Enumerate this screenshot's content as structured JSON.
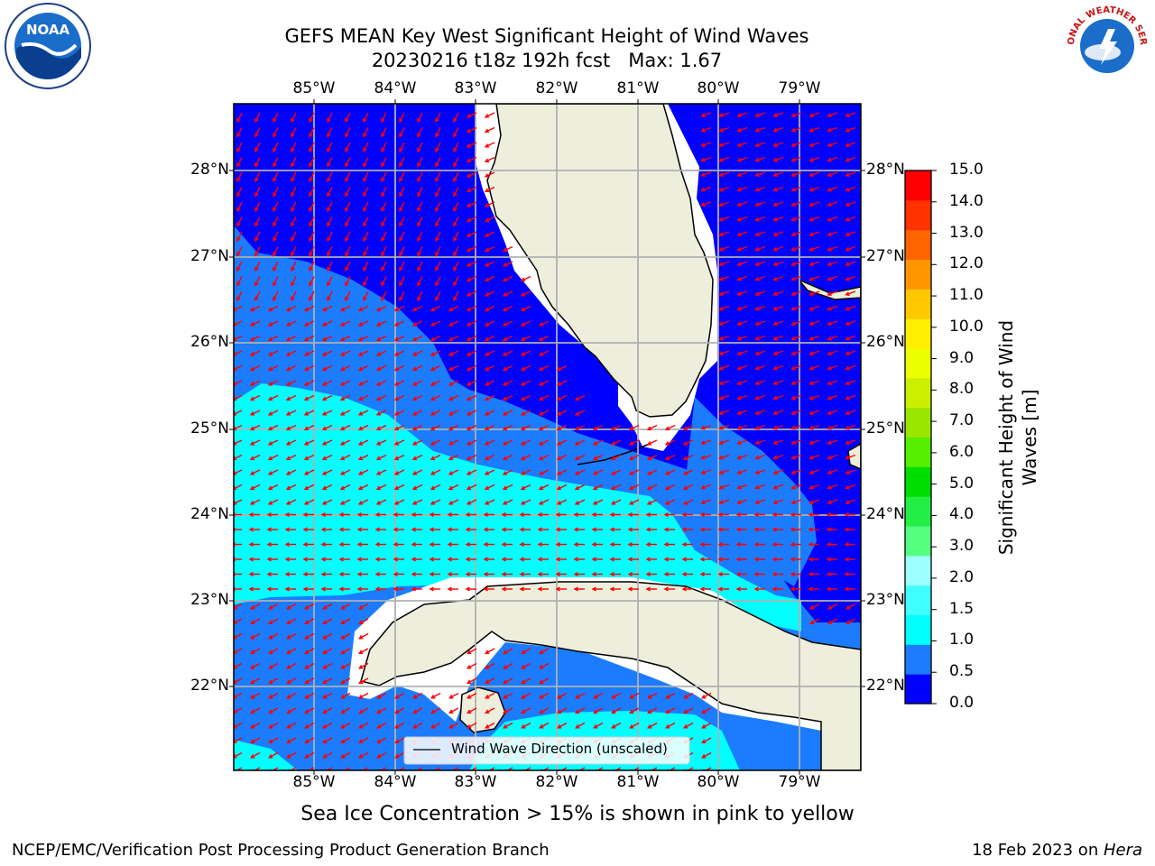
{
  "header": {
    "title_line1": "GEFS MEAN Key West Significant Height of Wind Waves",
    "title_line2": "20230216 t18z 192h fcst   Max: 1.67"
  },
  "map": {
    "lon_labels": [
      "85°W",
      "84°W",
      "83°W",
      "82°W",
      "81°W",
      "80°W",
      "79°W"
    ],
    "lat_labels": [
      "22°N",
      "23°N",
      "24°N",
      "25°N",
      "26°N",
      "27°N",
      "28°N"
    ],
    "legend_label": "Wind Wave Direction (unscaled)",
    "colors": {
      "land": "#eeeedd",
      "band_0_05": "#0000ff",
      "band_05_1": "#1b7cff",
      "band_1_15": "#00ffff",
      "arrow": "#ff0000",
      "grid": "#b0b0b0"
    }
  },
  "colorbar": {
    "title": "Significant Height of Wind Waves [m]",
    "ticks": [
      "0.0",
      "0.5",
      "1.0",
      "1.5",
      "2.0",
      "3.0",
      "4.0",
      "5.0",
      "6.0",
      "7.0",
      "8.0",
      "9.0",
      "10.0",
      "11.0",
      "12.0",
      "13.0",
      "14.0",
      "15.0"
    ],
    "colors": [
      "#0000ff",
      "#1b7cff",
      "#00ffff",
      "#40ffff",
      "#a0ffff",
      "#55ff80",
      "#22ee44",
      "#00dd00",
      "#55ee00",
      "#99e600",
      "#ccee00",
      "#eeff00",
      "#ffee00",
      "#ffc800",
      "#ff9600",
      "#ff6400",
      "#ff3200",
      "#ff0000"
    ]
  },
  "footer": {
    "note": "Sea Ice Concentration > 15% is shown in pink to yellow",
    "credit_left": "NCEP/EMC/Verification Post Processing Product Generation Branch",
    "credit_date": "18 Feb 2023 on ",
    "credit_host": "Hera"
  },
  "logos": {
    "noaa_text": "NOAA",
    "nws_text": "NATIONAL WEATHER SERVICE"
  }
}
